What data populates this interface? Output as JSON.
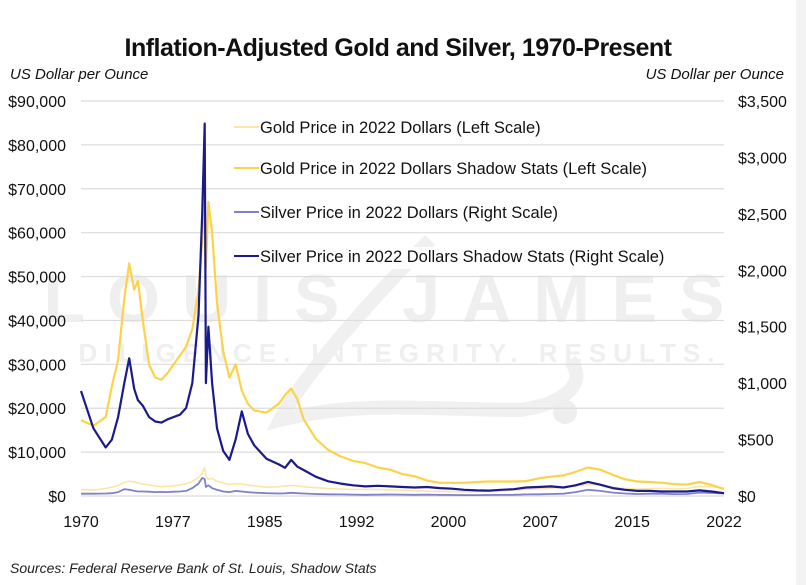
{
  "chart_data": {
    "type": "line",
    "title": "Inflation-Adjusted Gold and Silver, 1970-Present",
    "ylabel_left": "US Dollar per Ounce",
    "ylabel_right": "US Dollar per Ounce",
    "xlabel": "",
    "source": "Sources: Federal Reserve Bank of St. Louis, Shadow Stats",
    "watermark": {
      "line1": "LOUIS JAMES",
      "line2": "DILIGENCE. INTEGRITY. RESULTS."
    },
    "xlim": [
      1970,
      2022
    ],
    "x_ticks": [
      "1970",
      "1977",
      "1985",
      "1992",
      "2000",
      "2007",
      "2015",
      "2022"
    ],
    "ylim_left": [
      0,
      90000
    ],
    "ylim_right": [
      0,
      3500
    ],
    "y_ticks_left": [
      "$0",
      "$10,000",
      "$20,000",
      "$30,000",
      "$40,000",
      "$50,000",
      "$60,000",
      "$70,000",
      "$80,000",
      "$90,000"
    ],
    "y_ticks_right": [
      "$0",
      "$500",
      "$1,000",
      "$1,500",
      "$2,000",
      "$2,500",
      "$3,000",
      "$3,500"
    ],
    "grid": true,
    "legend_position": "top-center",
    "x": [
      1970,
      1971,
      1972,
      1972.5,
      1973,
      1973.5,
      1973.9,
      1974.3,
      1974.6,
      1975,
      1975.5,
      1976,
      1976.5,
      1977,
      1977.5,
      1978,
      1978.5,
      1979,
      1979.5,
      1979.8,
      1980,
      1980.1,
      1980.3,
      1980.6,
      1981,
      1981.5,
      1982,
      1982.5,
      1983,
      1983.5,
      1984,
      1985,
      1986,
      1986.5,
      1987,
      1987.5,
      1988,
      1989,
      1990,
      1991,
      1992,
      1993,
      1994,
      1995,
      1996,
      1997,
      1998,
      1999,
      2000,
      2001,
      2002,
      2003,
      2004,
      2005,
      2006,
      2007,
      2008,
      2009,
      2010,
      2011,
      2012,
      2013,
      2014,
      2015,
      2016,
      2017,
      2018,
      2019,
      2020,
      2021,
      2022
    ],
    "series": [
      {
        "name": "Gold Price in 2022 Dollars (Left Scale)",
        "axis": "left",
        "color": "#fde6a4",
        "values": [
          1500,
          1400,
          1700,
          2000,
          2400,
          3100,
          3400,
          3200,
          3000,
          2700,
          2500,
          2300,
          2100,
          2200,
          2300,
          2500,
          2800,
          3300,
          4200,
          5200,
          6500,
          4500,
          3800,
          4000,
          3300,
          3000,
          2600,
          2800,
          2700,
          2500,
          2300,
          2000,
          2100,
          2300,
          2400,
          2300,
          2100,
          1900,
          1700,
          1600,
          1500,
          1500,
          1500,
          1400,
          1400,
          1200,
          1100,
          1000,
          1000,
          950,
          1000,
          1100,
          1200,
          1300,
          1500,
          1600,
          1800,
          2000,
          2300,
          2600,
          2500,
          2000,
          1700,
          1600,
          1700,
          1700,
          1600,
          1700,
          2200,
          2100,
          1800
        ]
      },
      {
        "name": "Gold Price in 2022 Dollars Shadow Stats (Left Scale)",
        "axis": "left",
        "color": "#fbd34a",
        "values": [
          17300,
          16000,
          18000,
          25000,
          31000,
          45000,
          53000,
          47000,
          49000,
          40000,
          30000,
          27000,
          26500,
          28000,
          30000,
          32000,
          34000,
          38000,
          47000,
          58000,
          72000,
          52000,
          67000,
          60000,
          44000,
          33000,
          27000,
          30000,
          24000,
          21000,
          19500,
          19000,
          21000,
          23000,
          24500,
          22000,
          17500,
          13000,
          10500,
          9000,
          8000,
          7500,
          6500,
          6000,
          5000,
          4500,
          3500,
          3000,
          3000,
          3000,
          3200,
          3300,
          3300,
          3300,
          3400,
          4000,
          4400,
          4700,
          5500,
          6500,
          6000,
          4800,
          3800,
          3300,
          3200,
          3000,
          2700,
          2600,
          3200,
          2500,
          1600
        ]
      },
      {
        "name": "Silver Price in 2022 Dollars (Right Scale)",
        "axis": "right",
        "color": "#8080cc",
        "values": [
          20,
          20,
          22,
          25,
          35,
          60,
          55,
          45,
          40,
          40,
          38,
          35,
          36,
          35,
          38,
          40,
          45,
          70,
          110,
          160,
          150,
          80,
          95,
          70,
          55,
          40,
          35,
          45,
          40,
          35,
          30,
          25,
          22,
          24,
          28,
          25,
          22,
          18,
          15,
          14,
          12,
          11,
          12,
          13,
          12,
          11,
          12,
          10,
          9,
          8,
          8,
          9,
          10,
          11,
          14,
          15,
          18,
          20,
          35,
          55,
          45,
          30,
          22,
          18,
          20,
          20,
          17,
          18,
          30,
          27,
          22
        ]
      },
      {
        "name": "Silver Price in 2022 Dollars Shadow Stats (Right Scale)",
        "axis": "right",
        "color": "#1a1a8c",
        "values": [
          930,
          600,
          430,
          500,
          700,
          1000,
          1220,
          950,
          850,
          800,
          700,
          660,
          650,
          680,
          700,
          720,
          780,
          1000,
          1600,
          2500,
          3300,
          1000,
          1500,
          1000,
          600,
          400,
          320,
          500,
          750,
          550,
          450,
          330,
          280,
          250,
          320,
          260,
          230,
          170,
          130,
          110,
          95,
          85,
          90,
          85,
          80,
          75,
          80,
          70,
          65,
          55,
          50,
          48,
          55,
          60,
          75,
          80,
          85,
          75,
          95,
          125,
          100,
          70,
          55,
          45,
          45,
          40,
          40,
          40,
          50,
          40,
          25
        ]
      }
    ]
  }
}
